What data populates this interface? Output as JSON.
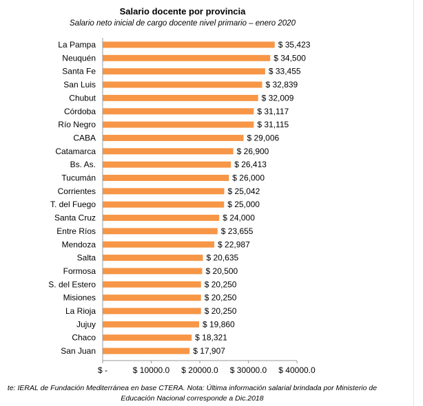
{
  "chart_data": {
    "type": "bar",
    "orientation": "horizontal",
    "title": "Salario docente por provincia",
    "subtitle": "Salario neto inicial de cargo docente nivel primario – enero 2020",
    "categories": [
      "La Pampa",
      "Neuquén",
      "Santa Fe",
      "San Luis",
      "Chubut",
      "Córdoba",
      "Río Negro",
      "CABA",
      "Catamarca",
      "Bs. As.",
      "Tucumán",
      "Corrientes",
      "T. del Fuego",
      "Santa Cruz",
      "Entre Ríos",
      "Mendoza",
      "Salta",
      "Formosa",
      "S. del Estero",
      "Misiones",
      "La Rioja",
      "Jujuy",
      "Chaco",
      "San Juan"
    ],
    "values": [
      35423,
      34500,
      33455,
      32839,
      32009,
      31117,
      31115,
      29006,
      26900,
      26413,
      26000,
      25042,
      25000,
      24000,
      23655,
      22987,
      20635,
      20500,
      20250,
      20250,
      20250,
      19860,
      18321,
      17907
    ],
    "value_labels": [
      "$ 35,423",
      "$ 34,500",
      "$ 33,455",
      "$ 32,839",
      "$ 32,009",
      "$ 31,117",
      "$ 31,115",
      "$ 29,006",
      "$ 26,900",
      "$ 26,413",
      "$ 26,000",
      "$ 25,042",
      "$ 25,000",
      "$ 24,000",
      "$ 23,655",
      "$ 22,987",
      "$ 20,635",
      "$ 20,500",
      "$ 20,250",
      "$ 20,250",
      "$ 20,250",
      "$ 19,860",
      "$ 18,321",
      "$ 17,907"
    ],
    "xlim": [
      0,
      40000
    ],
    "xticks": [
      0,
      10000,
      20000,
      30000,
      40000
    ],
    "xtick_labels": [
      "$ -",
      "$ 10000.0",
      "$ 20000.0",
      "$ 30000.0",
      "$ 40000.0"
    ],
    "bar_color": "#F79646",
    "grid": false,
    "legend": "none"
  },
  "footnote": {
    "line1": "te: IERAL de Fundación Mediterránea en base CTERA. Nota: Última información salarial brindada por Ministerio de",
    "line2": "Educación Nacional corresponde a Dic.2018"
  }
}
